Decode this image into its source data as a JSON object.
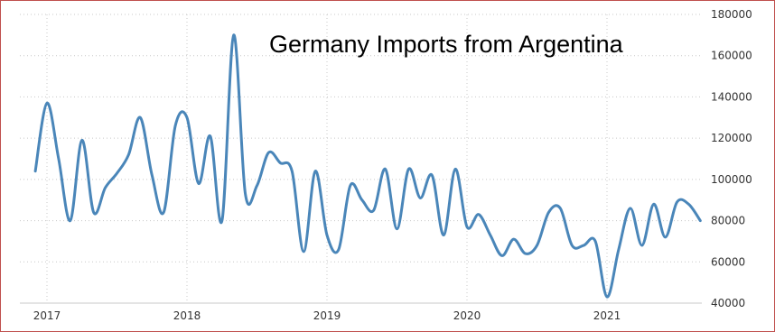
{
  "chart_data": {
    "type": "line",
    "title": "Germany Imports from Argentina",
    "xlabel": "",
    "ylabel": "",
    "x_ticks": [
      "2017",
      "2018",
      "2019",
      "2020",
      "2021"
    ],
    "y_ticks": [
      "40000",
      "60000",
      "80000",
      "100000",
      "120000",
      "140000",
      "160000",
      "180000"
    ],
    "ylim": [
      40000,
      180000
    ],
    "grid": true,
    "series": [
      {
        "color": "#4a86b9",
        "x": [
          "2016-12",
          "2017-01",
          "2017-02",
          "2017-03",
          "2017-04",
          "2017-05",
          "2017-06",
          "2017-07",
          "2017-08",
          "2017-09",
          "2017-10",
          "2017-11",
          "2017-12",
          "2018-01",
          "2018-02",
          "2018-03",
          "2018-04",
          "2018-05",
          "2018-06",
          "2018-07",
          "2018-08",
          "2018-09",
          "2018-10",
          "2018-11",
          "2018-12",
          "2019-01",
          "2019-02",
          "2019-03",
          "2019-04",
          "2019-05",
          "2019-06",
          "2019-07",
          "2019-08",
          "2019-09",
          "2019-10",
          "2019-11",
          "2019-12",
          "2020-01",
          "2020-02",
          "2020-03",
          "2020-04",
          "2020-05",
          "2020-06",
          "2020-07",
          "2020-08",
          "2020-09",
          "2020-10",
          "2020-11",
          "2020-12",
          "2021-01",
          "2021-02",
          "2021-03",
          "2021-04",
          "2021-05",
          "2021-06",
          "2021-07",
          "2021-08",
          "2021-09"
        ],
        "values": [
          104000,
          137000,
          110000,
          80000,
          119000,
          84000,
          96000,
          103000,
          112000,
          130000,
          102000,
          84000,
          126000,
          130000,
          98000,
          121000,
          80000,
          170000,
          93000,
          97000,
          113000,
          108000,
          104000,
          65000,
          104000,
          73000,
          66000,
          97000,
          90000,
          85000,
          105000,
          76000,
          105000,
          91000,
          102000,
          73000,
          105000,
          77000,
          83000,
          73000,
          63000,
          71000,
          64000,
          68000,
          84000,
          86000,
          68000,
          68000,
          70000,
          43000,
          66000,
          86000,
          68000,
          88000,
          72000,
          89000,
          88000,
          80000
        ]
      }
    ]
  }
}
